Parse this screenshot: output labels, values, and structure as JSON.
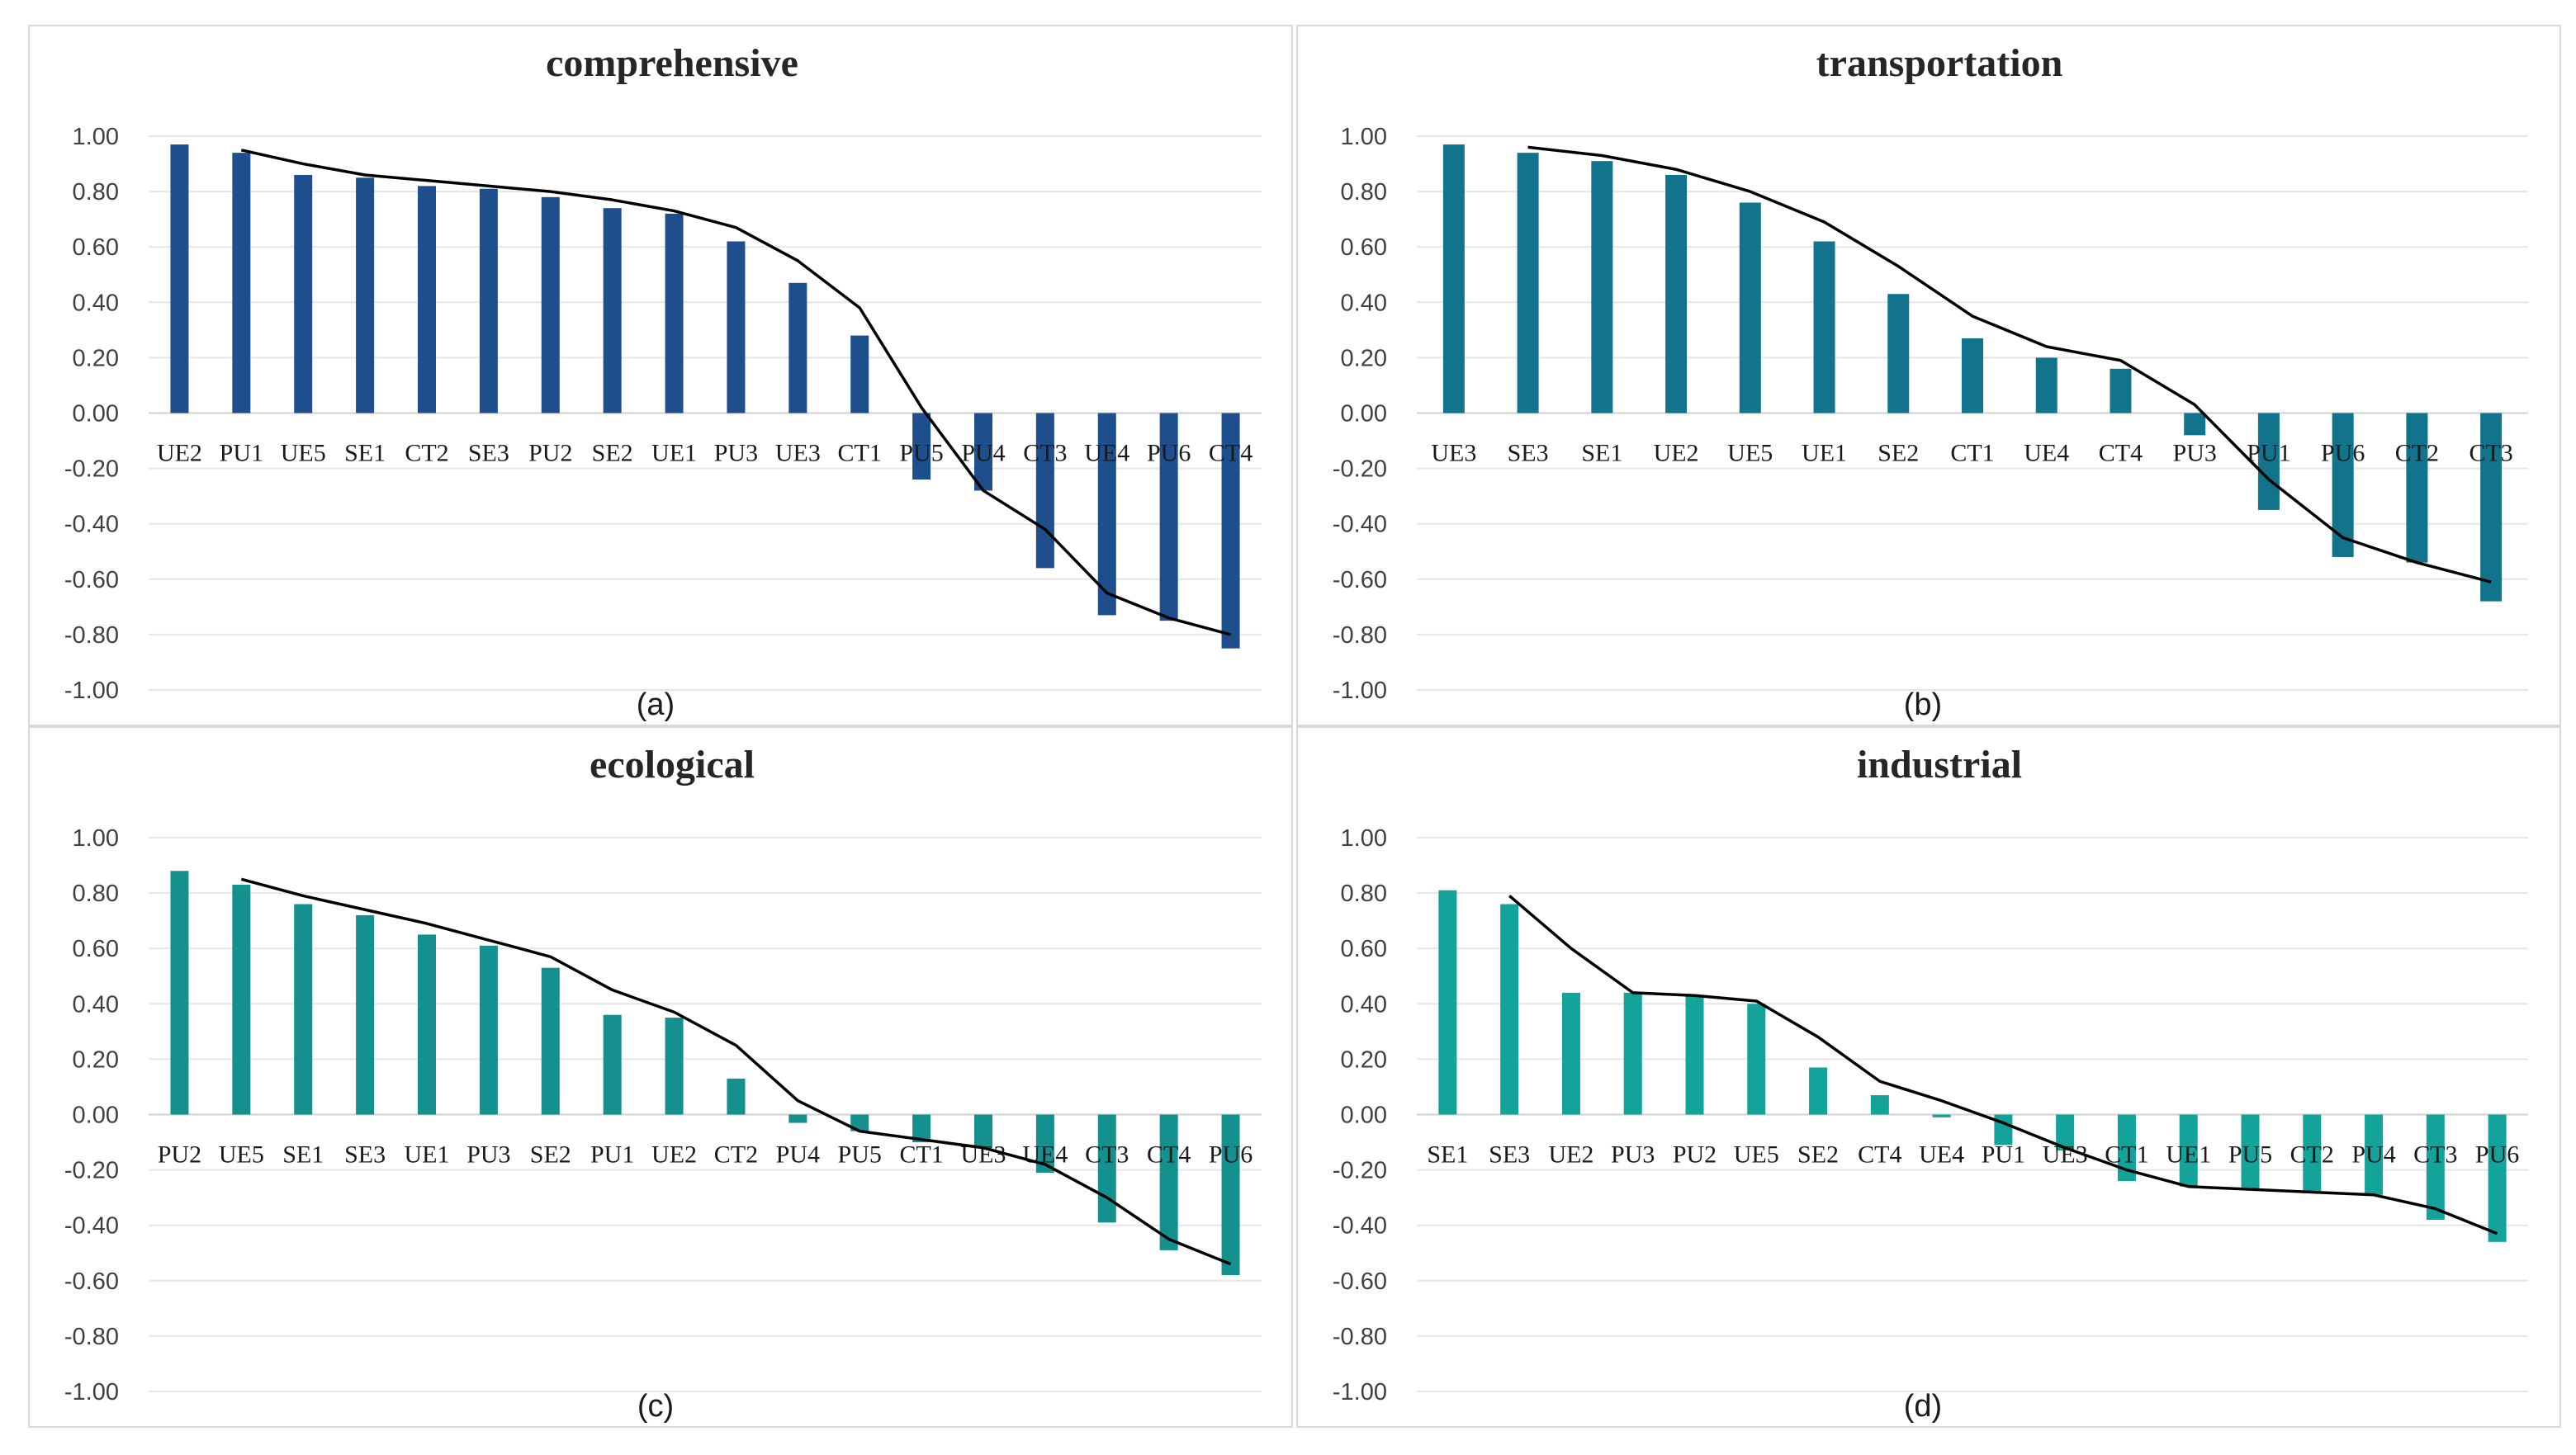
{
  "chart_data": [
    {
      "type": "bar",
      "title": "comprehensive",
      "caption": "(a)",
      "color": "#1f4e8c",
      "ylim": [
        -1.0,
        1.0
      ],
      "yticks": [
        "1.00",
        "0.80",
        "0.60",
        "0.40",
        "0.20",
        "0.00",
        "-0.20",
        "-0.40",
        "-0.60",
        "-0.80",
        "-1.00"
      ],
      "categories": [
        "UE2",
        "PU1",
        "UE5",
        "SE1",
        "CT2",
        "SE3",
        "PU2",
        "SE2",
        "UE1",
        "PU3",
        "UE3",
        "CT1",
        "PU5",
        "PU4",
        "CT3",
        "UE4",
        "PU6",
        "CT4"
      ],
      "values": [
        0.97,
        0.94,
        0.86,
        0.85,
        0.82,
        0.81,
        0.78,
        0.74,
        0.72,
        0.62,
        0.47,
        0.28,
        -0.24,
        -0.28,
        -0.56,
        -0.73,
        -0.75,
        -0.85
      ],
      "trend_line": [
        null,
        0.95,
        0.9,
        0.86,
        0.84,
        0.82,
        0.8,
        0.77,
        0.73,
        0.67,
        0.55,
        0.38,
        0.02,
        -0.28,
        -0.42,
        -0.65,
        -0.74,
        -0.8
      ]
    },
    {
      "type": "bar",
      "title": "transportation",
      "caption": "(b)",
      "color": "#11748c",
      "ylim": [
        -1.0,
        1.0
      ],
      "yticks": [
        "1.00",
        "0.80",
        "0.60",
        "0.40",
        "0.20",
        "0.00",
        "-0.20",
        "-0.40",
        "-0.60",
        "-0.80",
        "-1.00"
      ],
      "categories": [
        "UE3",
        "SE3",
        "SE1",
        "UE2",
        "UE5",
        "UE1",
        "SE2",
        "CT1",
        "UE4",
        "CT4",
        "PU3",
        "PU1",
        "PU6",
        "CT2",
        "CT3"
      ],
      "values": [
        0.97,
        0.94,
        0.91,
        0.86,
        0.76,
        0.62,
        0.43,
        0.27,
        0.2,
        0.16,
        -0.08,
        -0.35,
        -0.52,
        -0.54,
        -0.68
      ],
      "trend_line": [
        null,
        0.96,
        0.93,
        0.88,
        0.8,
        0.69,
        0.53,
        0.35,
        0.24,
        0.19,
        0.03,
        -0.24,
        -0.45,
        -0.54,
        -0.61
      ]
    },
    {
      "type": "bar",
      "title": "ecological",
      "caption": "(c)",
      "color": "#14908f",
      "ylim": [
        -1.0,
        1.0
      ],
      "yticks": [
        "1.00",
        "0.80",
        "0.60",
        "0.40",
        "0.20",
        "0.00",
        "-0.20",
        "-0.40",
        "-0.60",
        "-0.80",
        "-1.00"
      ],
      "categories": [
        "PU2",
        "UE5",
        "SE1",
        "SE3",
        "UE1",
        "PU3",
        "SE2",
        "PU1",
        "UE2",
        "CT2",
        "PU4",
        "PU5",
        "CT1",
        "UE3",
        "UE4",
        "CT3",
        "CT4",
        "PU6"
      ],
      "values": [
        0.88,
        0.83,
        0.76,
        0.72,
        0.65,
        0.61,
        0.53,
        0.36,
        0.35,
        0.13,
        -0.03,
        -0.06,
        -0.1,
        -0.12,
        -0.21,
        -0.39,
        -0.49,
        -0.58
      ],
      "trend_line": [
        null,
        0.85,
        0.79,
        0.74,
        0.69,
        0.63,
        0.57,
        0.45,
        0.37,
        0.25,
        0.05,
        -0.06,
        -0.09,
        -0.12,
        -0.18,
        -0.3,
        -0.45,
        -0.54
      ]
    },
    {
      "type": "bar",
      "title": "industrial",
      "caption": "(d)",
      "color": "#13a39a",
      "ylim": [
        -1.0,
        1.0
      ],
      "yticks": [
        "1.00",
        "0.80",
        "0.60",
        "0.40",
        "0.20",
        "0.00",
        "-0.20",
        "-0.40",
        "-0.60",
        "-0.80",
        "-1.00"
      ],
      "categories": [
        "SE1",
        "SE3",
        "UE2",
        "PU3",
        "PU2",
        "UE5",
        "SE2",
        "CT4",
        "UE4",
        "PU1",
        "UE3",
        "CT1",
        "UE1",
        "PU5",
        "CT2",
        "PU4",
        "CT3",
        "PU6"
      ],
      "values": [
        0.81,
        0.76,
        0.44,
        0.44,
        0.43,
        0.4,
        0.17,
        0.07,
        -0.01,
        -0.11,
        -0.13,
        -0.24,
        -0.26,
        -0.27,
        -0.28,
        -0.29,
        -0.38,
        -0.46
      ],
      "trend_line": [
        null,
        0.79,
        0.6,
        0.44,
        0.43,
        0.41,
        0.28,
        0.12,
        0.05,
        -0.03,
        -0.12,
        -0.2,
        -0.26,
        -0.27,
        -0.28,
        -0.29,
        -0.34,
        -0.43
      ]
    }
  ]
}
